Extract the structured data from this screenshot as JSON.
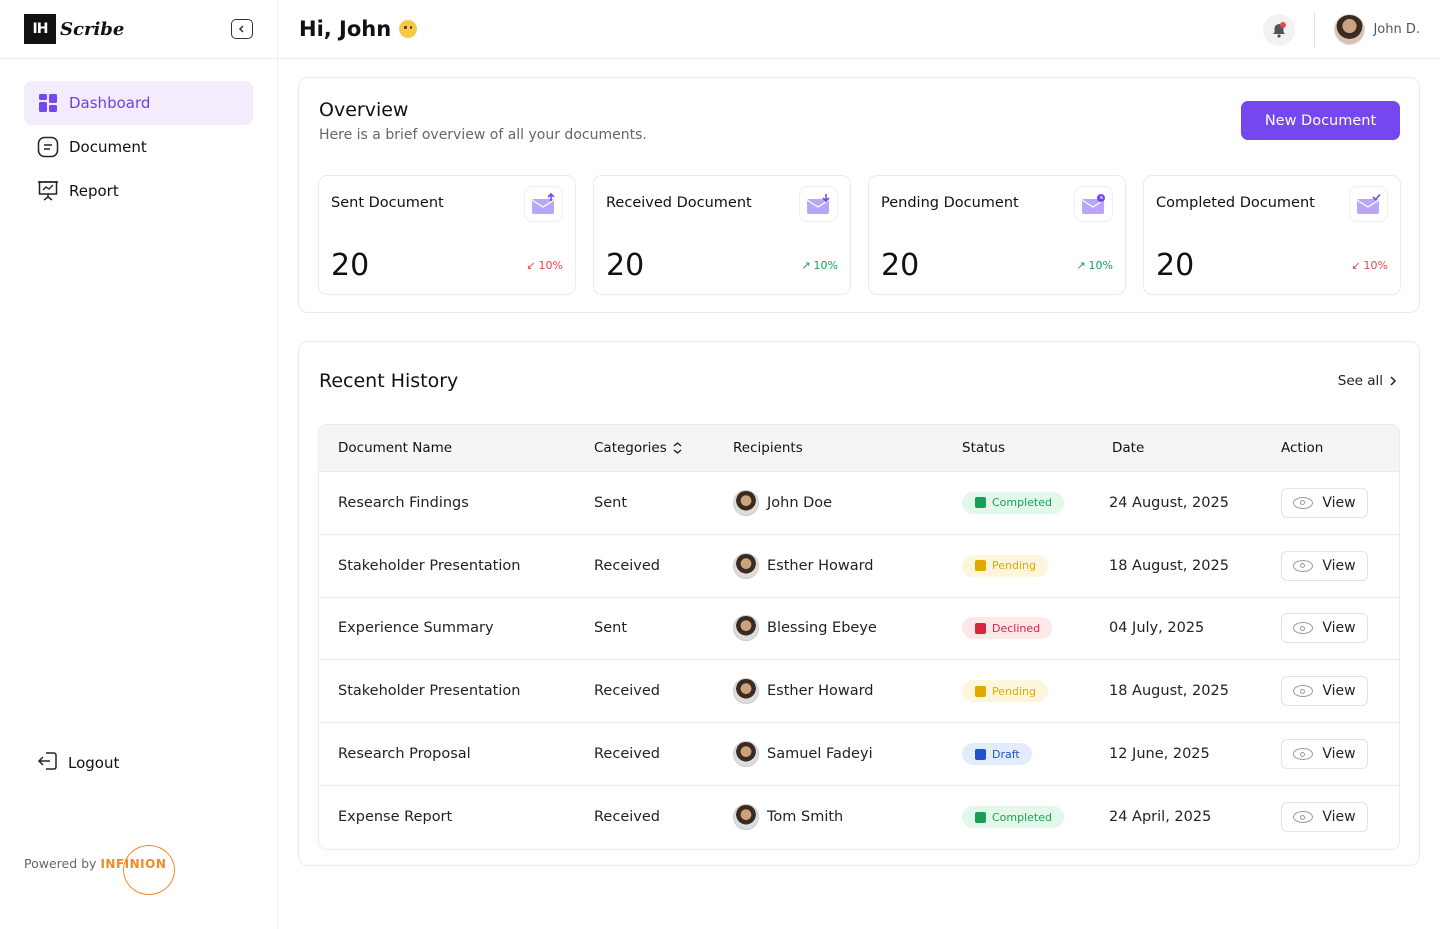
{
  "brand": {
    "logo_mark": "IH",
    "logo_text": "Scribe",
    "powered_by": "Powered by",
    "company": "INFINION"
  },
  "sidebar": {
    "items": [
      {
        "label": "Dashboard",
        "icon": "grid-icon",
        "active": true
      },
      {
        "label": "Document",
        "icon": "document-icon",
        "active": false
      },
      {
        "label": "Report",
        "icon": "presentation-chart-icon",
        "active": false
      }
    ],
    "logout_label": "Logout"
  },
  "header": {
    "greeting": "Hi, John",
    "user_name": "John D."
  },
  "overview": {
    "title": "Overview",
    "subtitle": "Here is a brief overview of all your documents.",
    "new_button": "New Document",
    "stats": [
      {
        "label": "Sent Document",
        "value": "20",
        "change": "10%",
        "trend": "down"
      },
      {
        "label": "Received Document",
        "value": "20",
        "change": "10%",
        "trend": "up"
      },
      {
        "label": "Pending Document",
        "value": "20",
        "change": "10%",
        "trend": "up"
      },
      {
        "label": "Completed Document",
        "value": "20",
        "change": "10%",
        "trend": "down"
      }
    ]
  },
  "history": {
    "title": "Recent History",
    "see_all": "See all",
    "columns": [
      "Document Name",
      "Categories",
      "Recipients",
      "Status",
      "Date",
      "Action"
    ],
    "rows": [
      {
        "name": "Research Findings",
        "category": "Sent",
        "recipient": "John Doe",
        "status": "Completed",
        "date": "24 August, 2025",
        "action": "View"
      },
      {
        "name": "Stakeholder Presentation",
        "category": "Received",
        "recipient": "Esther Howard",
        "status": "Pending",
        "date": "18 August, 2025",
        "action": "View"
      },
      {
        "name": "Experience Summary",
        "category": "Sent",
        "recipient": "Blessing Ebeye",
        "status": "Declined",
        "date": "04 July, 2025",
        "action": "View"
      },
      {
        "name": "Stakeholder Presentation",
        "category": "Received",
        "recipient": "Esther Howard",
        "status": "Pending",
        "date": "18 August, 2025",
        "action": "View"
      },
      {
        "name": "Research Proposal",
        "category": "Received",
        "recipient": "Samuel Fadeyi",
        "status": "Draft",
        "date": "12 June, 2025",
        "action": "View"
      },
      {
        "name": "Expense Report",
        "category": "Received",
        "recipient": "Tom Smith",
        "status": "Completed",
        "date": "24 April, 2025",
        "action": "View"
      }
    ]
  },
  "colors": {
    "accent": "#7548ef",
    "active_bg": "#f2ecfd",
    "up": "#1a9e55",
    "down": "#e5484d"
  }
}
